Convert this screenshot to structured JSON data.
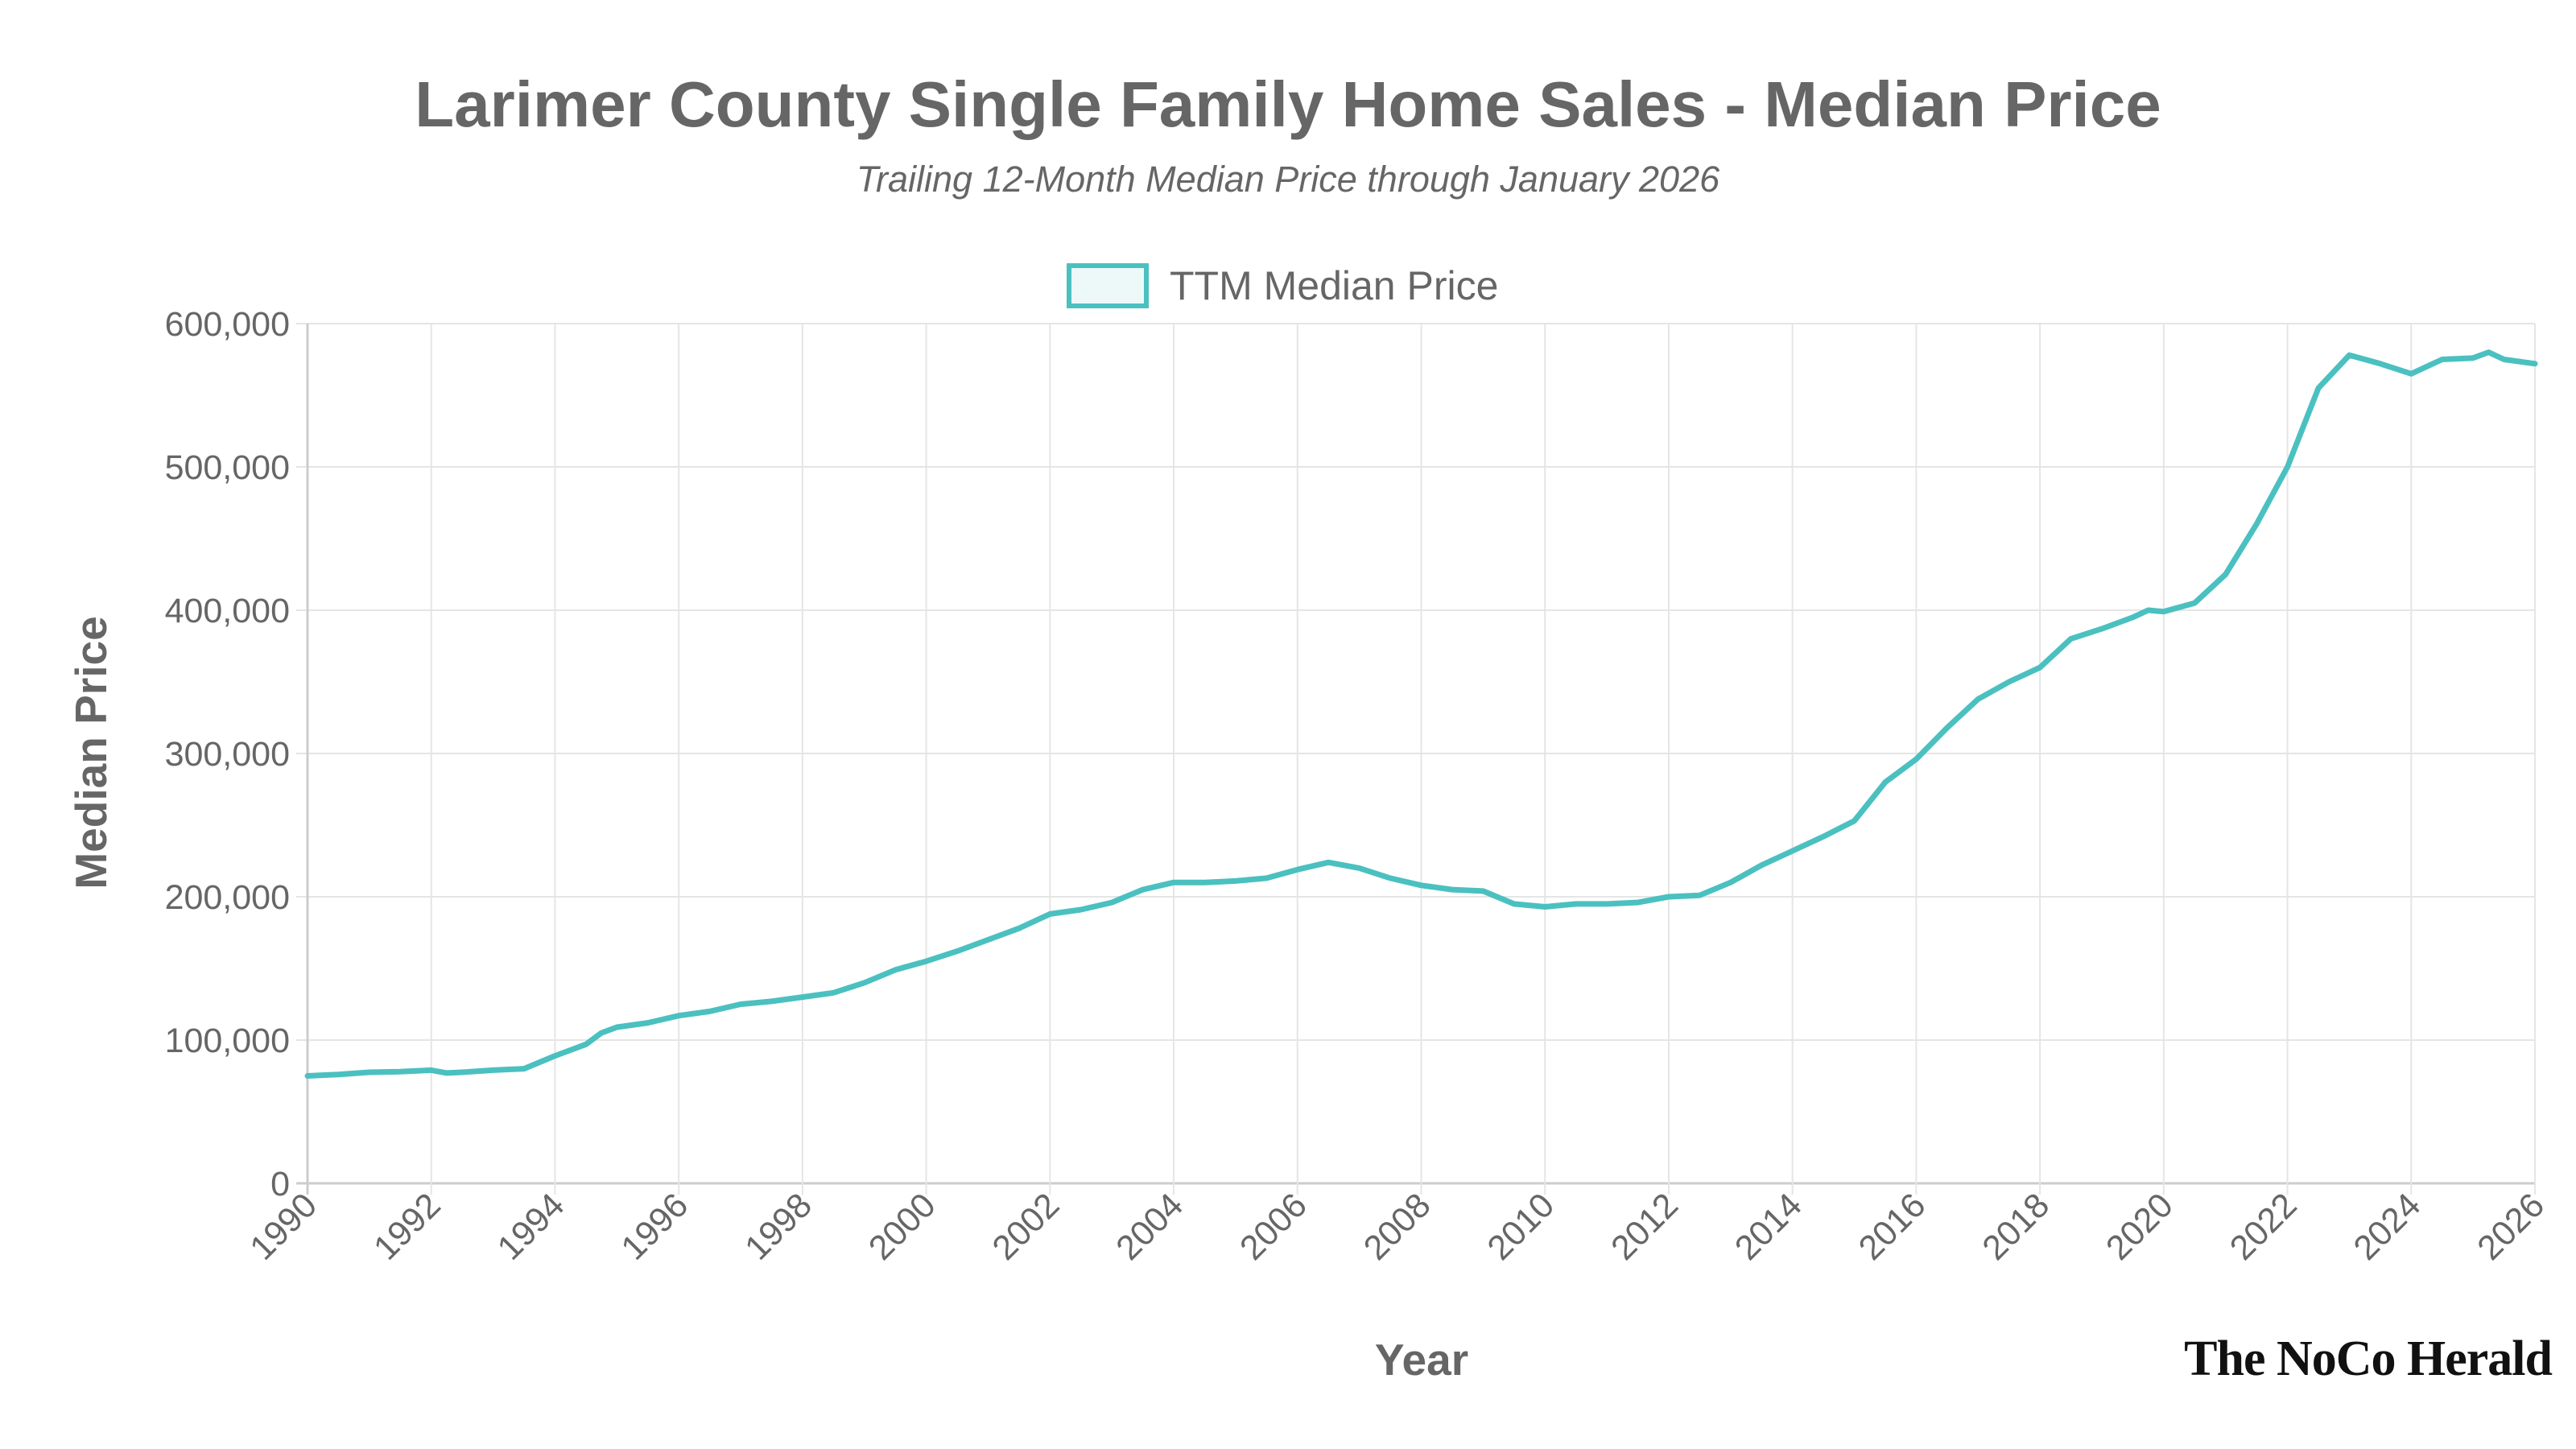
{
  "chart_data": {
    "type": "line",
    "title": "Larimer County Single Family Home Sales - Median Price",
    "subtitle": "Trailing 12-Month Median Price through January 2026",
    "xlabel": "Year",
    "ylabel": "Median Price",
    "xlim": [
      1990,
      2026
    ],
    "ylim": [
      0,
      600000
    ],
    "grid": true,
    "legend_placement": "top-center",
    "x_ticks": [
      "1990",
      "1992",
      "1994",
      "1996",
      "1998",
      "2000",
      "2002",
      "2004",
      "2006",
      "2008",
      "2010",
      "2012",
      "2014",
      "2016",
      "2018",
      "2020",
      "2022",
      "2024",
      "2026"
    ],
    "y_ticks": [
      "0",
      "100,000",
      "200,000",
      "300,000",
      "400,000",
      "500,000",
      "600,000"
    ],
    "series": [
      {
        "name": "TTM Median Price",
        "color": "#4bc0c0",
        "x": [
          1990.0,
          1990.5,
          1991.0,
          1991.5,
          1992.0,
          1992.25,
          1992.5,
          1993.0,
          1993.5,
          1994.0,
          1994.5,
          1994.75,
          1995.0,
          1995.5,
          1996.0,
          1996.5,
          1997.0,
          1997.5,
          1998.0,
          1998.5,
          1999.0,
          1999.5,
          2000.0,
          2000.5,
          2001.0,
          2001.5,
          2002.0,
          2002.5,
          2003.0,
          2003.5,
          2004.0,
          2004.5,
          2005.0,
          2005.5,
          2006.0,
          2006.5,
          2007.0,
          2007.5,
          2008.0,
          2008.5,
          2009.0,
          2009.5,
          2010.0,
          2010.5,
          2011.0,
          2011.5,
          2012.0,
          2012.5,
          2013.0,
          2013.5,
          2014.0,
          2014.5,
          2015.0,
          2015.5,
          2016.0,
          2016.5,
          2017.0,
          2017.5,
          2018.0,
          2018.5,
          2019.0,
          2019.5,
          2019.75,
          2020.0,
          2020.5,
          2021.0,
          2021.5,
          2022.0,
          2022.5,
          2023.0,
          2023.5,
          2024.0,
          2024.5,
          2025.0,
          2025.25,
          2025.5,
          2026.0
        ],
        "y": [
          75000,
          76000,
          77500,
          78000,
          79000,
          77000,
          77500,
          79000,
          80000,
          89000,
          97000,
          105000,
          109000,
          112000,
          117000,
          120000,
          125000,
          127000,
          130000,
          133000,
          140000,
          149000,
          155000,
          162000,
          170000,
          178000,
          188000,
          191000,
          196000,
          205000,
          210000,
          210000,
          211000,
          213000,
          219000,
          224000,
          220000,
          213000,
          208000,
          205000,
          204000,
          195000,
          193000,
          195000,
          195000,
          196000,
          200000,
          201000,
          210000,
          222000,
          232000,
          242000,
          253000,
          280000,
          296000,
          318000,
          338000,
          350000,
          360000,
          380000,
          387000,
          395000,
          400000,
          399000,
          405000,
          425000,
          460000,
          500000,
          555000,
          578000,
          572000,
          565000,
          575000,
          576000,
          580000,
          575000,
          572000
        ]
      }
    ]
  },
  "branding": {
    "logo_text": "The NoCo Herald"
  },
  "colors": {
    "text": "#666666",
    "grid": "#e5e5e5",
    "line": "#4bc0c0",
    "legend_fill": "#edf9f9"
  }
}
